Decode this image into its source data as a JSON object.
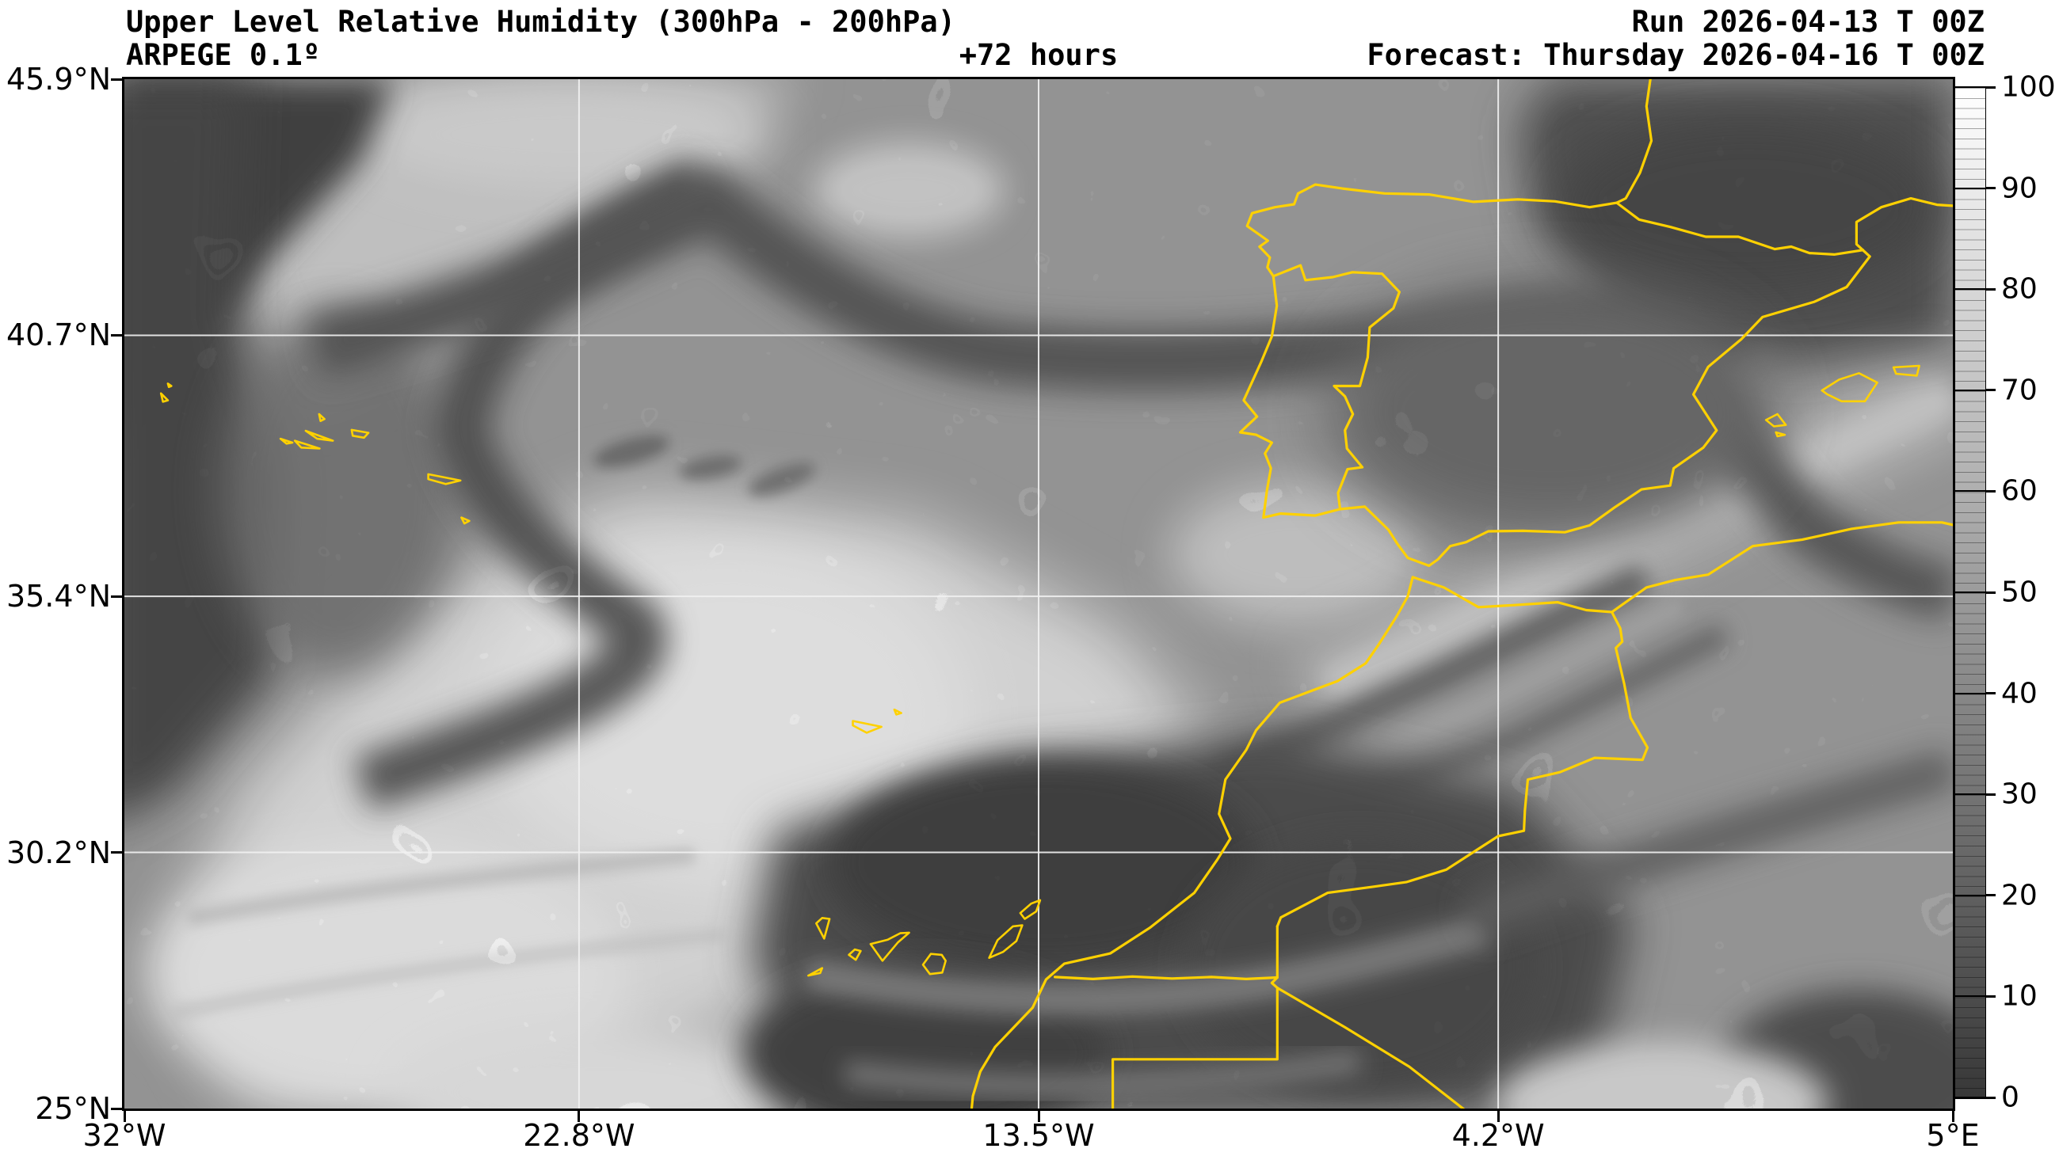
{
  "header": {
    "title": "Upper Level Relative Humidity (300hPa - 200hPa)",
    "model": "ARPEGE 0.1º",
    "lead_time": "+72 hours",
    "run": "Run 2026-04-13 T 00Z",
    "forecast": "Forecast: Thursday 2026-04-16 T 00Z"
  },
  "axes": {
    "lon_range": [
      -32,
      5
    ],
    "lat_range": [
      25,
      45.9
    ],
    "x_ticks": [
      {
        "label": "32°W",
        "lon": -32
      },
      {
        "label": "22.8°W",
        "lon": -22.8
      },
      {
        "label": "13.5°W",
        "lon": -13.5
      },
      {
        "label": "4.2°W",
        "lon": -4.2
      },
      {
        "label": "5°E",
        "lon": 5
      }
    ],
    "y_ticks": [
      {
        "label": "45.9°N",
        "lat": 45.9
      },
      {
        "label": "40.7°N",
        "lat": 40.7
      },
      {
        "label": "35.4°N",
        "lat": 35.4
      },
      {
        "label": "30.2°N",
        "lat": 30.2
      },
      {
        "label": "25°N",
        "lat": 25
      }
    ]
  },
  "colorbar": {
    "min": 0,
    "max": 100,
    "tick_values": [
      100,
      90,
      80,
      70,
      60,
      50,
      40,
      30,
      20,
      10,
      0
    ],
    "minor_step": 1,
    "top_color": "#ffffff",
    "bottom_color": "#383838"
  },
  "colors": {
    "coastline": "#FFD100",
    "grid": "#f2f2f2",
    "frame": "#000000",
    "background": "#ffffff",
    "field_base": "#a6a6a6"
  },
  "chart_data": {
    "type": "heatmap",
    "subtype": "filled-contour meteorological map, grayscale shading with fine contour lines",
    "title": "Upper Level Relative Humidity (300hPa - 200hPa)",
    "model": "ARPEGE 0.1º",
    "lead_time_hours": 72,
    "run_time": "2026-04-13 00Z",
    "valid_time": "Thursday 2026-04-16 00Z",
    "variable": "Relative Humidity between 300hPa and 200hPa",
    "colorbar_levels": [
      0,
      10,
      20,
      30,
      40,
      50,
      60,
      70,
      80,
      90,
      100
    ],
    "colorbar_style": "grayscale: white = 100 (moist) at top to dark gray = 0 (dry) at bottom, minor segment lines every ~1 unit",
    "extent": {
      "lon_min_deg": -32,
      "lon_max_deg": 5,
      "lat_min_deg": 25,
      "lat_max_deg": 45.9
    },
    "gridlines": {
      "lon_deg": [
        -22.8,
        -13.5,
        -4.2
      ],
      "lat_deg": [
        40.7,
        35.4,
        30.2
      ],
      "color": "white"
    },
    "geographic_features_outlined_in_yellow": [
      "French Atlantic and Mediterranean coasts",
      "Iberian Peninsula coastline",
      "Spain-France border (Pyrenees)",
      "Portugal-Spain border",
      "North African Mediterranean and Atlantic coasts (Morocco, Algeria, Western Sahara)",
      "Morocco-Algeria border",
      "Western Sahara / Algeria / Mauritania straight borders",
      "Canary Islands",
      "Madeira",
      "Azores",
      "Balearic Islands"
    ],
    "field_summary": "Dry (dark) zones: NE Atlantic top-left corner and along left edge, a sinuous dry band arcing from mid-Atlantic toward Bay of Biscay and northern Spain, broad dry mass over Biscay/N Iberia extending down eastern Spain, large dry region over Mauritania/Mali south of the Canary Islands, and a dry patch in the bottom-right. Moist (white) zones: large high-humidity region over the central subtropical Atlantic west/southwest of Madeira extending to the bottom-left, a bright diagonal moist band from the Gulf of Cadiz across Algeria toward the upper right edge, and a small moist patch near the bottom right."
  }
}
